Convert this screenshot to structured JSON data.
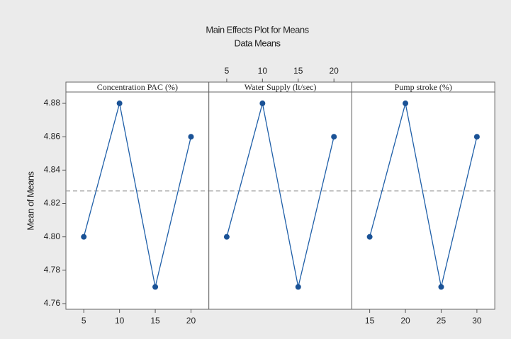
{
  "title": "Main Effects Plot for Means",
  "subtitle": "Data Means",
  "ylabel": "Mean of Means",
  "ylim": [
    4.7566,
    4.8868
  ],
  "yticks": [
    4.76,
    4.78,
    {
      "value": 4.8,
      "label": "4.80"
    },
    4.82,
    4.84,
    4.86,
    4.88
  ],
  "mean": 4.8275,
  "chart_data": [
    {
      "type": "line",
      "title": "Concentration PAC (%)",
      "x": [
        5,
        10,
        15,
        20
      ],
      "values": [
        4.8,
        4.88,
        4.77,
        4.86
      ],
      "xlim": [
        2.5,
        22.5
      ],
      "xticks": [
        5,
        10,
        15,
        20
      ],
      "xaxis": "bottom",
      "color": "#1f5fa8"
    },
    {
      "type": "line",
      "title": "Water Supply (lt/sec)",
      "x": [
        5,
        10,
        15,
        20
      ],
      "values": [
        4.8,
        4.88,
        4.77,
        4.86
      ],
      "xlim": [
        2.5,
        22.5
      ],
      "xticks": [
        5,
        10,
        15,
        20
      ],
      "xaxis": "top",
      "color": "#1f5fa8"
    },
    {
      "type": "line",
      "title": "Pump stroke (%)",
      "x": [
        15,
        20,
        25,
        30
      ],
      "values": [
        4.8,
        4.88,
        4.77,
        4.86
      ],
      "xlim": [
        12.5,
        32.5
      ],
      "xticks": [
        15,
        20,
        25,
        30
      ],
      "xaxis": "bottom",
      "color": "#1f5fa8"
    }
  ]
}
